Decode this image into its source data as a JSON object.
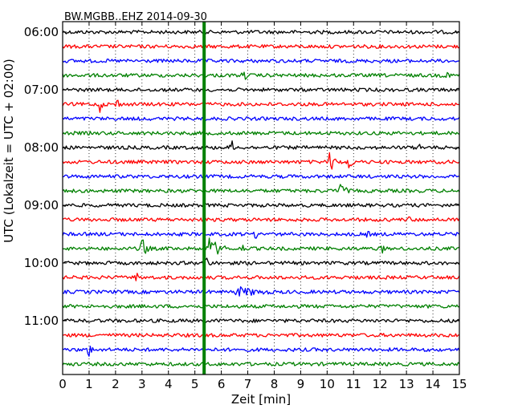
{
  "chart_data": {
    "type": "line",
    "title": "BW.MGBB..EHZ 2014-09-30",
    "xlabel": "Zeit  [min]",
    "ylabel": "UTC (Lokalzeit = UTC + 02:00)",
    "xlim": [
      0,
      15
    ],
    "x_ticks": [
      "0",
      "1",
      "2",
      "3",
      "4",
      "5",
      "6",
      "7",
      "8",
      "9",
      "10",
      "11",
      "12",
      "13",
      "14",
      "15"
    ],
    "y_ticks": [
      "06:00",
      "07:00",
      "08:00",
      "09:00",
      "10:00",
      "11:00"
    ],
    "grid": "dotted vertical",
    "colors": [
      "#000000",
      "#ff0000",
      "#0000ff",
      "#008000"
    ],
    "trace_interval_min": 15,
    "traces": [
      {
        "start": "06:00",
        "color": "#000000"
      },
      {
        "start": "06:15",
        "color": "#ff0000"
      },
      {
        "start": "06:30",
        "color": "#0000ff"
      },
      {
        "start": "06:45",
        "color": "#008000"
      },
      {
        "start": "07:00",
        "color": "#000000"
      },
      {
        "start": "07:15",
        "color": "#ff0000"
      },
      {
        "start": "07:30",
        "color": "#0000ff"
      },
      {
        "start": "07:45",
        "color": "#008000"
      },
      {
        "start": "08:00",
        "color": "#000000"
      },
      {
        "start": "08:15",
        "color": "#ff0000"
      },
      {
        "start": "08:30",
        "color": "#0000ff"
      },
      {
        "start": "08:45",
        "color": "#008000"
      },
      {
        "start": "09:00",
        "color": "#000000"
      },
      {
        "start": "09:15",
        "color": "#ff0000"
      },
      {
        "start": "09:30",
        "color": "#0000ff"
      },
      {
        "start": "09:45",
        "color": "#008000"
      },
      {
        "start": "10:00",
        "color": "#000000"
      },
      {
        "start": "10:15",
        "color": "#ff0000"
      },
      {
        "start": "10:30",
        "color": "#0000ff"
      },
      {
        "start": "10:45",
        "color": "#008000"
      },
      {
        "start": "11:00",
        "color": "#000000"
      },
      {
        "start": "11:15",
        "color": "#ff0000"
      },
      {
        "start": "11:30",
        "color": "#0000ff"
      },
      {
        "start": "11:45",
        "color": "#008000"
      }
    ],
    "events": [
      {
        "trace": 3,
        "minute": 6.85,
        "amp": 0.5,
        "dur": 0.3
      },
      {
        "trace": 3,
        "minute": 14.55,
        "amp": 0.6,
        "dur": 0.15
      },
      {
        "trace": 5,
        "minute": 1.4,
        "amp": 0.7,
        "dur": 0.25
      },
      {
        "trace": 5,
        "minute": 2.05,
        "amp": 0.55,
        "dur": 0.25
      },
      {
        "trace": 8,
        "minute": 6.4,
        "amp": 0.7,
        "dur": 0.15
      },
      {
        "trace": 8,
        "minute": 13.5,
        "amp": 0.3,
        "dur": 0.2
      },
      {
        "trace": 9,
        "minute": 10.1,
        "amp": 0.75,
        "dur": 0.6
      },
      {
        "trace": 9,
        "minute": 10.8,
        "amp": 0.6,
        "dur": 0.5
      },
      {
        "trace": 10,
        "minute": 5.4,
        "amp": 0.35,
        "dur": 0.3
      },
      {
        "trace": 11,
        "minute": 10.5,
        "amp": 0.7,
        "dur": 0.5
      },
      {
        "trace": 13,
        "minute": 13.1,
        "amp": 0.3,
        "dur": 0.2
      },
      {
        "trace": 14,
        "minute": 7.3,
        "amp": 0.35,
        "dur": 0.4
      },
      {
        "trace": 14,
        "minute": 11.4,
        "amp": 0.4,
        "dur": 0.6
      },
      {
        "trace": 15,
        "minute": 3.0,
        "amp": 0.8,
        "dur": 0.5
      },
      {
        "trace": 15,
        "minute": 5.55,
        "amp": 0.85,
        "dur": 1.0
      },
      {
        "trace": 15,
        "minute": 6.8,
        "amp": 0.45,
        "dur": 0.15
      },
      {
        "trace": 15,
        "minute": 12.1,
        "amp": 0.4,
        "dur": 0.2
      },
      {
        "trace": 16,
        "minute": 5.4,
        "amp": 0.8,
        "dur": 0.3
      },
      {
        "trace": 17,
        "minute": 2.8,
        "amp": 0.45,
        "dur": 0.15
      },
      {
        "trace": 18,
        "minute": 6.6,
        "amp": 0.4,
        "dur": 3.0
      },
      {
        "trace": 22,
        "minute": 1.0,
        "amp": 0.55,
        "dur": 0.3
      }
    ],
    "vertical_marker": {
      "minute": 5.35,
      "color": "#008000",
      "first_trace": 0,
      "last_trace": 23
    }
  }
}
